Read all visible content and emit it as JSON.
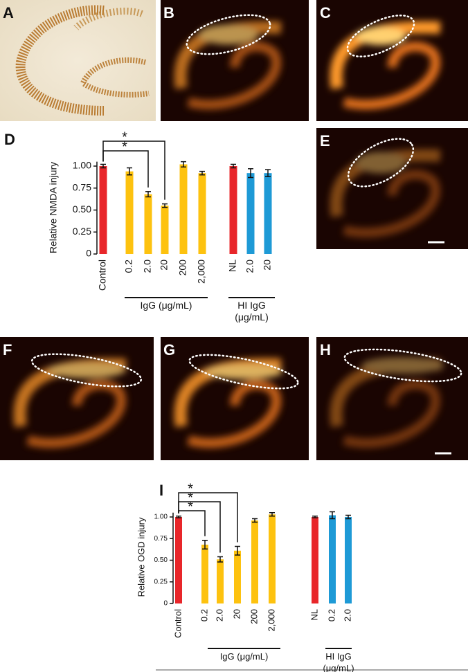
{
  "panel_labels": [
    "A",
    "B",
    "C",
    "D",
    "E",
    "F",
    "G",
    "H",
    "I"
  ],
  "chart_data": [
    {
      "type": "bar",
      "y_label": "Relative NMDA injury",
      "categories": [
        "Control",
        "0.2",
        "2.0",
        "20",
        "200",
        "2,000",
        "NL",
        "2.0",
        "20"
      ],
      "values": [
        1.0,
        0.94,
        0.68,
        0.55,
        1.02,
        0.92,
        1.0,
        0.92,
        0.92
      ],
      "errors": [
        0.02,
        0.04,
        0.03,
        0.02,
        0.03,
        0.02,
        0.02,
        0.05,
        0.04
      ],
      "colors": [
        "#e8262a",
        "#fdc20f",
        "#fdc20f",
        "#fdc20f",
        "#fdc20f",
        "#fdc20f",
        "#e8262a",
        "#1e9ad6",
        "#1e9ad6"
      ],
      "ylim": [
        0,
        1.05
      ],
      "yticks": [
        0,
        0.25,
        {
          "value": 0.5,
          "label": "0.50"
        },
        0.75,
        {
          "value": 1,
          "label": "1.00"
        }
      ],
      "annotations": [
        "*",
        "*"
      ],
      "group_labels": [
        "IgG (μg/mL)",
        "HI IgG (μg/mL)"
      ]
    },
    {
      "type": "bar",
      "y_label": "Relative OGD injury",
      "categories": [
        "Control",
        "0.2",
        "2.0",
        "20",
        "200",
        "2,000",
        "NL",
        "0.2",
        "2.0"
      ],
      "values": [
        1.0,
        0.68,
        0.51,
        0.61,
        0.96,
        1.03,
        1.0,
        1.02,
        1.0
      ],
      "errors": [
        0.01,
        0.05,
        0.03,
        0.05,
        0.02,
        0.02,
        0.01,
        0.04,
        0.02
      ],
      "colors": [
        "#e8262a",
        "#fdc20f",
        "#fdc20f",
        "#fdc20f",
        "#fdc20f",
        "#fdc20f",
        "#e8262a",
        "#1e9ad6",
        "#1e9ad6"
      ],
      "ylim": [
        0,
        1.05
      ],
      "yticks": [
        0,
        0.25,
        {
          "value": 0.5,
          "label": "0.50"
        },
        0.75,
        {
          "value": 1,
          "label": "1.00"
        }
      ],
      "annotations": [
        "*",
        "*",
        "*"
      ],
      "group_labels": [
        "IgG (μg/mL)",
        "HI IgG (μg/mL)"
      ]
    }
  ]
}
